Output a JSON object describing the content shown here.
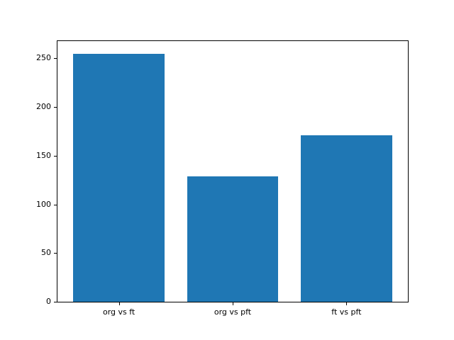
{
  "figure": {
    "background": "#ffffff"
  },
  "chart_data": {
    "type": "bar",
    "title": "",
    "xlabel": "",
    "ylabel": "",
    "categories": [
      "org vs ft",
      "org vs pft",
      "ft vs pft"
    ],
    "values": [
      255,
      129,
      171
    ],
    "yticks": [
      0,
      50,
      100,
      150,
      200,
      250
    ],
    "ylim": [
      0,
      267.75
    ],
    "bar_color": "#1f77b4",
    "bar_width_fraction": 0.8,
    "x_margin_fraction": 0.05,
    "grid": false,
    "legend": null
  }
}
